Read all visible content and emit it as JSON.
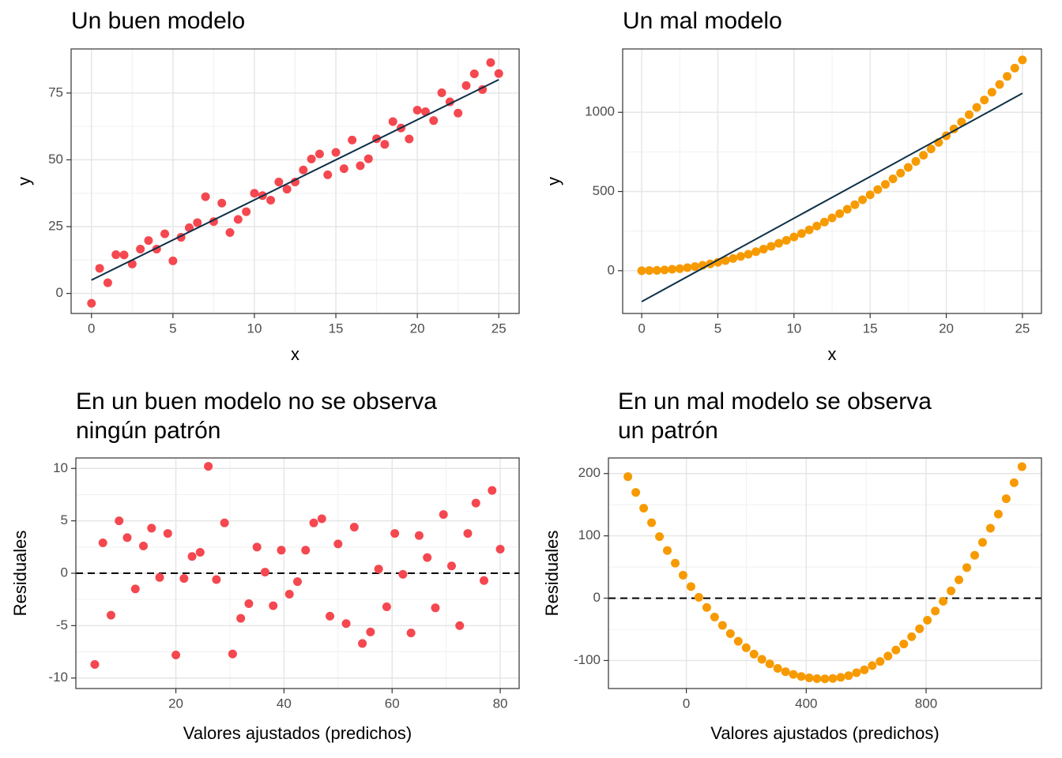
{
  "chart_data": [
    {
      "type": "scatter",
      "title": "Un buen modelo",
      "x_label": "x",
      "y_label": "y",
      "color": "#f5474f",
      "line_color": "#0d2f47",
      "x": [
        0,
        0.5,
        1,
        1.5,
        2,
        2.5,
        3,
        3.5,
        4,
        4.5,
        5,
        5.5,
        6,
        6.5,
        7,
        7.5,
        8,
        8.5,
        9,
        9.5,
        10,
        10.5,
        11,
        11.5,
        12,
        12.5,
        13,
        13.5,
        14,
        14.5,
        15,
        15.5,
        16,
        16.5,
        17,
        17.5,
        18,
        18.5,
        19,
        19.5,
        20,
        20.5,
        21,
        21.5,
        22,
        22.5,
        23,
        23.5,
        24,
        24.5,
        25
      ],
      "y": [
        -3.7,
        9.4,
        4,
        14.5,
        14.4,
        11,
        16.6,
        19.8,
        16.6,
        22.3,
        12.2,
        21,
        24.6,
        26.5,
        36.2,
        26.9,
        33.8,
        22.8,
        27.7,
        30.6,
        37.5,
        36.6,
        34.9,
        41.7,
        39,
        41.7,
        46.2,
        50.3,
        52.2,
        44.4,
        52.8,
        46.7,
        57.4,
        47.8,
        50.4,
        57.9,
        55.8,
        64.3,
        61.9,
        57.8,
        68.6,
        68,
        64.7,
        75.1,
        71.7,
        67.5,
        77.8,
        82.2,
        76.3,
        86.4,
        82.3
      ],
      "line": {
        "x": [
          0,
          25
        ],
        "y": [
          5,
          80
        ]
      },
      "xlim": [
        -1.25,
        26.25
      ],
      "ylim": [
        -7.5,
        91.5
      ],
      "xticks": [
        0,
        5,
        10,
        15,
        20,
        25
      ],
      "yticks": [
        0,
        25,
        50,
        75
      ],
      "grid": true
    },
    {
      "type": "scatter",
      "title": "Un mal modelo",
      "x_label": "x",
      "y_label": "y",
      "color": "#f79a00",
      "line_color": "#0d2f47",
      "x": [
        0,
        0.5,
        1,
        1.5,
        2,
        2.5,
        3,
        3.5,
        4,
        4.5,
        5,
        5.5,
        6,
        6.5,
        7,
        7.5,
        8,
        8.5,
        9,
        9.5,
        10,
        10.5,
        11,
        11.5,
        12,
        12.5,
        13,
        13.5,
        14,
        14.5,
        15,
        15.5,
        16,
        16.5,
        17,
        17.5,
        18,
        18.5,
        19,
        19.5,
        20,
        20.5,
        21,
        21.5,
        22,
        22.5,
        23,
        23.5,
        24,
        24.5,
        25
      ],
      "y": [
        0,
        1,
        2,
        5,
        9,
        13,
        19,
        26,
        34,
        43,
        53,
        64,
        77,
        90,
        104,
        120,
        136,
        154,
        173,
        192,
        213,
        235,
        258,
        282,
        307,
        333,
        360,
        388,
        417,
        448,
        479,
        512,
        545,
        580,
        616,
        652,
        690,
        729,
        769,
        810,
        852,
        895,
        939,
        985,
        1031,
        1078,
        1127,
        1176,
        1227,
        1279,
        1331
      ],
      "line": {
        "x": [
          0,
          25
        ],
        "y": [
          -195,
          1120
        ]
      },
      "xlim": [
        -1.25,
        26.25
      ],
      "ylim": [
        -270,
        1400
      ],
      "xticks": [
        0,
        5,
        10,
        15,
        20,
        25
      ],
      "yticks": [
        0,
        500,
        1000
      ],
      "grid": true
    },
    {
      "type": "scatter",
      "title": [
        "En un buen modelo no se observa",
        "ningún patrón"
      ],
      "x_label": "Valores ajustados (predichos)",
      "y_label": "Residuales",
      "color": "#f5474f",
      "line_color": "#000000",
      "x": [
        5,
        6.5,
        8,
        9.5,
        11,
        12.5,
        14,
        15.5,
        17,
        18.5,
        20,
        21.5,
        23,
        24.5,
        26,
        27.5,
        29,
        30.5,
        32,
        33.5,
        35,
        36.5,
        38,
        39.5,
        41,
        42.5,
        44,
        45.5,
        47,
        48.5,
        50,
        51.5,
        53,
        54.5,
        56,
        57.5,
        59,
        60.5,
        62,
        63.5,
        65,
        66.5,
        68,
        69.5,
        71,
        72.5,
        74,
        75.5,
        77,
        78.5,
        80
      ],
      "y": [
        -8.7,
        2.9,
        -4,
        5,
        3.4,
        -1.5,
        2.6,
        4.3,
        -0.4,
        3.8,
        -7.8,
        -0.5,
        1.6,
        2,
        10.2,
        -0.6,
        4.8,
        -7.7,
        -4.3,
        -2.9,
        2.5,
        0.1,
        -3.1,
        2.2,
        -2,
        -0.8,
        2.2,
        4.8,
        5.2,
        -4.1,
        2.8,
        -4.8,
        4.4,
        -6.7,
        -5.6,
        0.4,
        -3.2,
        3.8,
        -0.1,
        -5.7,
        3.6,
        1.5,
        -3.3,
        5.6,
        0.7,
        -5,
        3.8,
        6.7,
        -0.7,
        7.9,
        2.3
      ],
      "hline": 0,
      "xlim": [
        1.5,
        83.5
      ],
      "ylim": [
        -11,
        11
      ],
      "xticks": [
        20,
        40,
        60,
        80
      ],
      "yticks": [
        -10,
        -5,
        0,
        5,
        10
      ],
      "grid": true
    },
    {
      "type": "scatter",
      "title": [
        "En un mal modelo se observa",
        "un patrón"
      ],
      "x_label": "Valores ajustados (predichos)",
      "y_label": "Residuales",
      "color": "#f79a00",
      "line_color": "#000000",
      "x": [
        -195,
        -168.7,
        -142.4,
        -116.1,
        -89.8,
        -63.5,
        -37.2,
        -10.9,
        15.4,
        41.7,
        68,
        94.3,
        120.6,
        146.9,
        173.2,
        199.5,
        225.8,
        252.1,
        278.4,
        304.7,
        331,
        357.3,
        383.6,
        409.9,
        436.2,
        462.5,
        488.8,
        515.1,
        541.4,
        567.7,
        594,
        620.3,
        646.6,
        672.9,
        699.2,
        725.5,
        751.8,
        778.1,
        804.4,
        830.7,
        857,
        883.3,
        909.6,
        935.9,
        962.2,
        988.5,
        1014.8,
        1041.1,
        1067.4,
        1093.7,
        1120
      ],
      "y": [
        195,
        169.7,
        144.4,
        121.1,
        98.8,
        76.5,
        56.2,
        36.9,
        18.6,
        1.3,
        -15,
        -30.3,
        -43.6,
        -56.9,
        -69.2,
        -79.5,
        -89.8,
        -98.1,
        -105.4,
        -112.7,
        -118,
        -122.3,
        -125.6,
        -127.9,
        -129.2,
        -129.5,
        -128.8,
        -127.1,
        -124.4,
        -119.7,
        -115,
        -108.3,
        -101.6,
        -92.9,
        -83.2,
        -73.5,
        -61.8,
        -49.1,
        -35.4,
        -20.7,
        -5,
        11.7,
        29.4,
        49.1,
        68.8,
        89.5,
        112.2,
        134.9,
        159.6,
        185.3,
        211
      ],
      "hline": 0,
      "xlim": [
        -260,
        1185
      ],
      "ylim": [
        -145,
        225
      ],
      "xticks": [
        0,
        400,
        800
      ],
      "yticks": [
        -100,
        0,
        100,
        200
      ],
      "grid": true
    }
  ]
}
